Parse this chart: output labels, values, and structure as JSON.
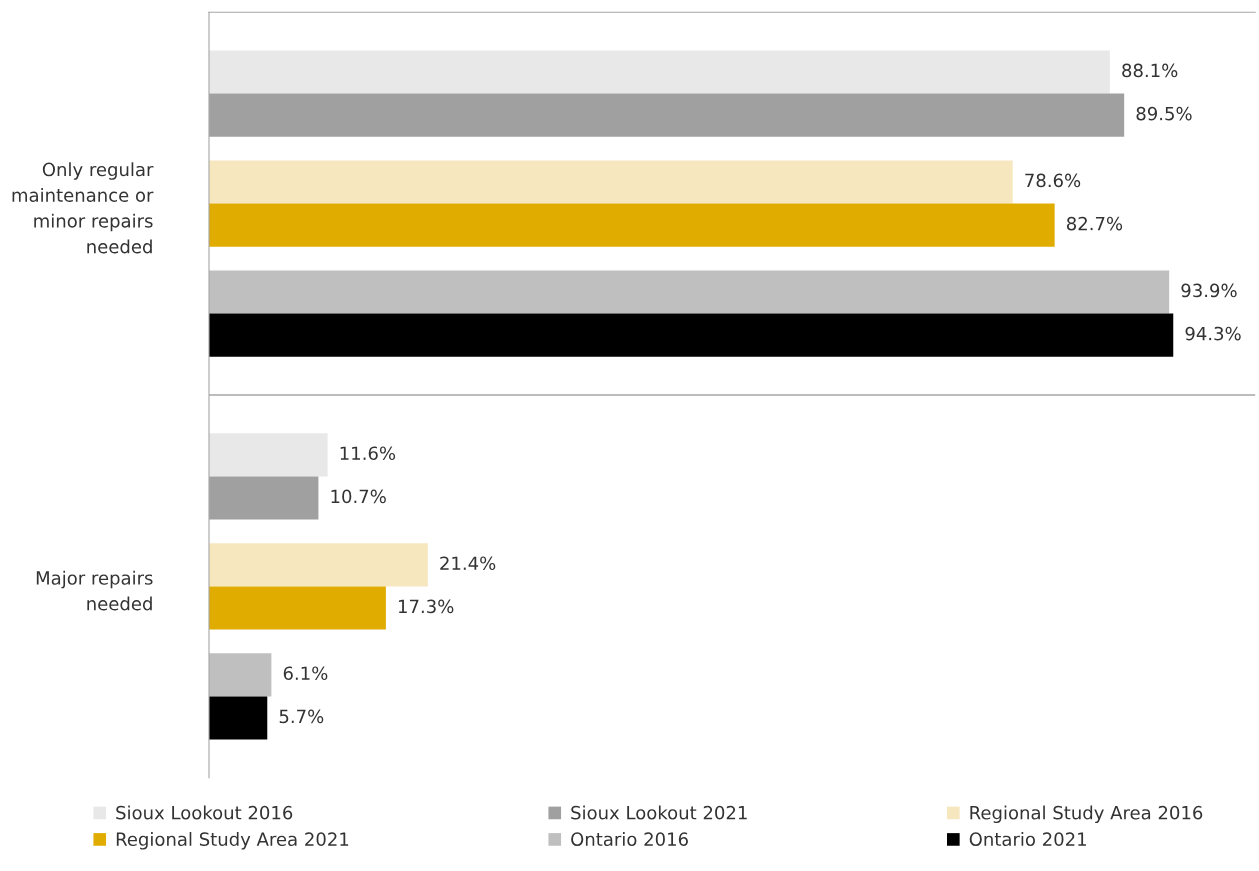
{
  "chart_data": {
    "type": "bar",
    "orientation": "horizontal",
    "categories": [
      "Only regular\nmaintenance or\nminor repairs\nneeded",
      "Major repairs\nneeded"
    ],
    "series": [
      {
        "name": "Sioux Lookout 2016",
        "color": "#e8e8e8",
        "values": [
          88.1,
          11.6
        ],
        "value_labels": [
          "88.1%",
          "11.6%"
        ]
      },
      {
        "name": "Sioux Lookout 2021",
        "color": "#a0a0a0",
        "values": [
          89.5,
          10.7
        ],
        "value_labels": [
          "89.5%",
          "10.7%"
        ]
      },
      {
        "name": "Regional Study Area 2016",
        "color": "#f7e7bf",
        "values": [
          78.6,
          21.4
        ],
        "value_labels": [
          "78.6%",
          "21.4%"
        ]
      },
      {
        "name": "Regional Study Area 2021",
        "color": "#e0ac00",
        "values": [
          82.7,
          17.3
        ],
        "value_labels": [
          "82.7%",
          "17.3%"
        ]
      },
      {
        "name": "Ontario 2016",
        "color": "#bfbfbf",
        "values": [
          93.9,
          6.1
        ],
        "value_labels": [
          "93.9%",
          "6.1%"
        ]
      },
      {
        "name": "Ontario 2021",
        "color": "#000000",
        "values": [
          94.3,
          5.7
        ],
        "value_labels": [
          "94.3%",
          "5.7%"
        ]
      }
    ],
    "legend": "bottom",
    "grid": false
  }
}
